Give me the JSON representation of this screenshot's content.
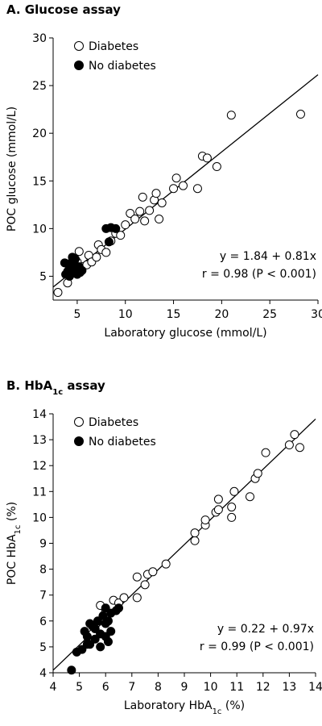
{
  "chart_data": [
    {
      "type": "scatter",
      "title": [
        "A. Glucose assay"
      ],
      "xlabel": [
        "Laboratory glucose (mmol/L)"
      ],
      "ylabel": [
        "POC glucose (mmol/L)"
      ],
      "xlim": [
        2.5,
        30
      ],
      "ylim": [
        2.5,
        30
      ],
      "xticks": [
        5,
        10,
        15,
        20,
        25,
        30
      ],
      "yticks": [
        5,
        10,
        15,
        20,
        25,
        30
      ],
      "legend": "upper left",
      "series": [
        {
          "name": "Diabetes",
          "color": "#000000",
          "fill": "#ffffff",
          "x": [
            3,
            4,
            4.5,
            4.8,
            5,
            5.2,
            5.5,
            6,
            6.2,
            6.5,
            7,
            7.2,
            7.5,
            8,
            8.5,
            9,
            9.5,
            10,
            10.5,
            11,
            11.5,
            11.8,
            12,
            12.5,
            13,
            13.2,
            13.5,
            13.8,
            15,
            15.3,
            16,
            17.5,
            18,
            18.5,
            19.5,
            21,
            28.2
          ],
          "y": [
            3.3,
            4.3,
            5.5,
            6.2,
            6.5,
            7.6,
            6.0,
            6.2,
            7.2,
            6.5,
            7.0,
            8.3,
            7.8,
            7.5,
            8.7,
            9.5,
            9.3,
            10.4,
            11.6,
            11.0,
            11.8,
            13.3,
            10.8,
            11.9,
            13.0,
            13.7,
            11.0,
            12.7,
            14.2,
            15.3,
            14.5,
            14.2,
            17.6,
            17.4,
            16.5,
            21.9,
            22
          ]
        },
        {
          "name": "No diabetes",
          "color": "#000000",
          "fill": "#000000",
          "x": [
            3.8,
            4,
            4,
            4.2,
            4.3,
            4.5,
            4.5,
            4.6,
            4.8,
            4.8,
            5,
            5,
            5.2,
            5.3,
            5.5,
            3.7,
            8,
            8.5,
            8.3,
            9
          ],
          "y": [
            5.2,
            5.5,
            6.3,
            5.0,
            5.8,
            5.3,
            7.0,
            6.2,
            5.5,
            6.8,
            5.2,
            5.8,
            6.0,
            5.4,
            5.6,
            6.4,
            10.0,
            10.1,
            8.6,
            10.0
          ]
        }
      ],
      "fit": {
        "intercept": 1.84,
        "slope": 0.81
      },
      "annotations": [
        "y = 1.84 + 0.81x",
        "r = 0.98 (P < 0.001)"
      ]
    },
    {
      "type": "scatter",
      "title": [
        "B. HbA",
        "1c",
        " assay"
      ],
      "xlabel": [
        "Laboratory HbA",
        "1c",
        " (%)"
      ],
      "ylabel": [
        "POC HbA",
        "1c",
        " (%)"
      ],
      "xlim": [
        4,
        14
      ],
      "ylim": [
        4,
        14
      ],
      "xticks": [
        4,
        5,
        6,
        7,
        8,
        9,
        10,
        11,
        12,
        13,
        14
      ],
      "yticks": [
        4,
        5,
        6,
        7,
        8,
        9,
        10,
        11,
        12,
        13,
        14
      ],
      "legend": "upper left",
      "series": [
        {
          "name": "Diabetes",
          "color": "#000000",
          "fill": "#ffffff",
          "x": [
            5.5,
            5.8,
            6,
            6.3,
            6.5,
            6.7,
            7.2,
            7.2,
            7.5,
            7.6,
            7.8,
            8.3,
            9.4,
            9.4,
            9.8,
            9.8,
            10.2,
            10.3,
            10.3,
            10.8,
            10.8,
            10.9,
            11.5,
            11.7,
            11.8,
            12.1,
            13,
            13.2,
            13.4
          ],
          "y": [
            5.5,
            6.6,
            6.4,
            6.8,
            6.7,
            6.9,
            7.7,
            6.9,
            7.4,
            7.8,
            7.9,
            8.2,
            9.1,
            9.4,
            9.7,
            9.9,
            10.2,
            10.3,
            10.7,
            10.0,
            10.4,
            11.0,
            10.8,
            11.5,
            11.7,
            12.5,
            12.8,
            13.2,
            12.7
          ]
        },
        {
          "name": "No diabetes",
          "color": "#000000",
          "fill": "#000000",
          "x": [
            4.7,
            4.9,
            5.1,
            5.2,
            5.3,
            5.4,
            5.5,
            5.6,
            5.7,
            5.8,
            5.8,
            5.9,
            6.0,
            6.0,
            6.1,
            6.1,
            6.2,
            6.2,
            5.4,
            5.6,
            6.4,
            6.5,
            5.3,
            6.0
          ],
          "y": [
            4.1,
            4.8,
            4.9,
            5.6,
            5.4,
            5.1,
            5.8,
            5.3,
            6.0,
            5.5,
            5.0,
            6.2,
            5.4,
            5.9,
            5.2,
            6.0,
            5.6,
            6.3,
            5.9,
            5.7,
            6.4,
            6.5,
            5.1,
            6.5
          ]
        }
      ],
      "fit": {
        "intercept": 0.22,
        "slope": 0.97
      },
      "annotations": [
        "y = 0.22 + 0.97x",
        "r = 0.99 (P < 0.001)"
      ]
    }
  ]
}
